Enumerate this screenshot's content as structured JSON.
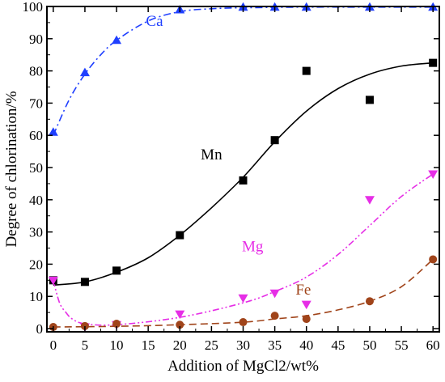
{
  "chart_data": {
    "type": "scatter",
    "xlabel": "Addition of MgCl2/wt%",
    "ylabel": "Degree of chlorination/%",
    "xlim": [
      -1,
      61
    ],
    "ylim": [
      -1,
      100
    ],
    "xticks": [
      0,
      5,
      10,
      15,
      20,
      25,
      30,
      35,
      40,
      45,
      50,
      55,
      60
    ],
    "yticks": [
      0,
      10,
      20,
      30,
      40,
      50,
      60,
      70,
      80,
      90,
      100
    ],
    "grid": false,
    "series": [
      {
        "name": "Ca",
        "color": "#1f3fff",
        "marker": "triangle-up",
        "line": "dash-dot",
        "x": [
          0,
          5,
          10,
          20,
          30,
          35,
          40,
          50,
          60
        ],
        "y": [
          61,
          79.5,
          89.5,
          99,
          99.8,
          99.8,
          99.8,
          99.8,
          99.8
        ],
        "fit": {
          "x": [
            0,
            2.5,
            5,
            7.5,
            10,
            15,
            20,
            25,
            30,
            40,
            50,
            60
          ],
          "y": [
            60,
            71,
            79,
            85,
            89.5,
            95.5,
            98.4,
            99.3,
            99.6,
            99.8,
            99.8,
            99.8
          ]
        }
      },
      {
        "name": "Mn",
        "color": "#000000",
        "marker": "square",
        "line": "solid",
        "x": [
          0,
          5,
          10,
          20,
          30,
          35,
          40,
          50,
          60
        ],
        "y": [
          15,
          14.5,
          18,
          29,
          46,
          58.5,
          80,
          71,
          82.5
        ],
        "fit": {
          "x": [
            0,
            5,
            10,
            15,
            20,
            25,
            30,
            35,
            40,
            45,
            50,
            55,
            60
          ],
          "y": [
            13.5,
            14.5,
            17.5,
            22,
            29,
            37.5,
            47,
            58,
            67.5,
            74.5,
            79,
            81.5,
            82.5
          ]
        }
      },
      {
        "name": "Mg",
        "color": "#e62ee6",
        "marker": "triangle-down",
        "line": "dash-dot-dot",
        "x": [
          0,
          5,
          10,
          20,
          30,
          35,
          40,
          50,
          60
        ],
        "y": [
          15,
          0.5,
          1.2,
          4.5,
          9.5,
          11,
          7.5,
          40,
          48
        ],
        "fit": {
          "x": [
            0,
            1,
            2,
            3,
            5,
            10,
            20,
            30,
            35,
            40,
            45,
            50,
            55,
            60
          ],
          "y": [
            15,
            8,
            5,
            3,
            1.5,
            1.2,
            3.5,
            8,
            11.5,
            16,
            23,
            32,
            41,
            48
          ]
        }
      },
      {
        "name": "Fe",
        "color": "#a0441a",
        "marker": "circle",
        "line": "dashed",
        "x": [
          0,
          5,
          10,
          20,
          30,
          35,
          40,
          50,
          60
        ],
        "y": [
          0.5,
          0.8,
          1.5,
          1.2,
          2,
          4,
          3,
          8.5,
          21.5
        ],
        "fit": {
          "x": [
            0,
            10,
            20,
            30,
            35,
            40,
            45,
            50,
            55,
            60
          ],
          "y": [
            0.5,
            0.7,
            1.2,
            2,
            3,
            4,
            5.8,
            8.5,
            13,
            21.5
          ]
        }
      }
    ],
    "labels": [
      {
        "text": "Ca",
        "color": "#1f3fff",
        "x": 16,
        "y": 94
      },
      {
        "text": "Mn",
        "color": "#000000",
        "x": 25,
        "y": 52.5
      },
      {
        "text": "Mg",
        "color": "#e62ee6",
        "x": 31.5,
        "y": 24
      },
      {
        "text": "Fe",
        "color": "#a0441a",
        "x": 39.5,
        "y": 10.5
      }
    ]
  }
}
